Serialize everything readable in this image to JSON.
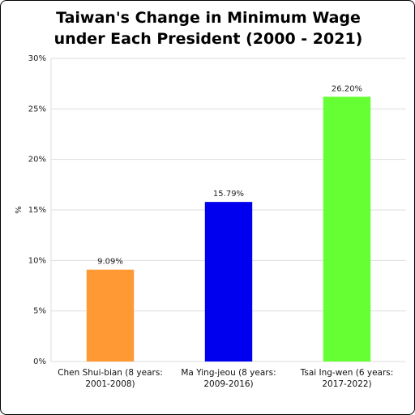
{
  "chart_data": {
    "type": "bar",
    "title": "Taiwan's Change in Minimum Wage under Each President (2000 - 2021)",
    "y_label": "%",
    "categories": [
      "Chen Shui-bian (8 years: 2001-2008)",
      "Ma Ying-jeou (8 years: 2009-2016)",
      "Tsai Ing-wen (6 years: 2017-2022)"
    ],
    "values": [
      9.09,
      15.79,
      26.2
    ],
    "value_labels": [
      "9.09%",
      "15.79%",
      "26.20%"
    ],
    "colors": [
      "#ff9933",
      "#0000ee",
      "#66ff33"
    ],
    "ylim": [
      0,
      30
    ],
    "yticks": [
      {
        "value": 0,
        "label": "0%"
      },
      {
        "value": 5,
        "label": "5%"
      },
      {
        "value": 10,
        "label": "10%"
      },
      {
        "value": 15,
        "label": "15%"
      },
      {
        "value": 20,
        "label": "20%"
      },
      {
        "value": 25,
        "label": "25%"
      },
      {
        "value": 30,
        "label": "30%"
      }
    ],
    "grid": true
  }
}
